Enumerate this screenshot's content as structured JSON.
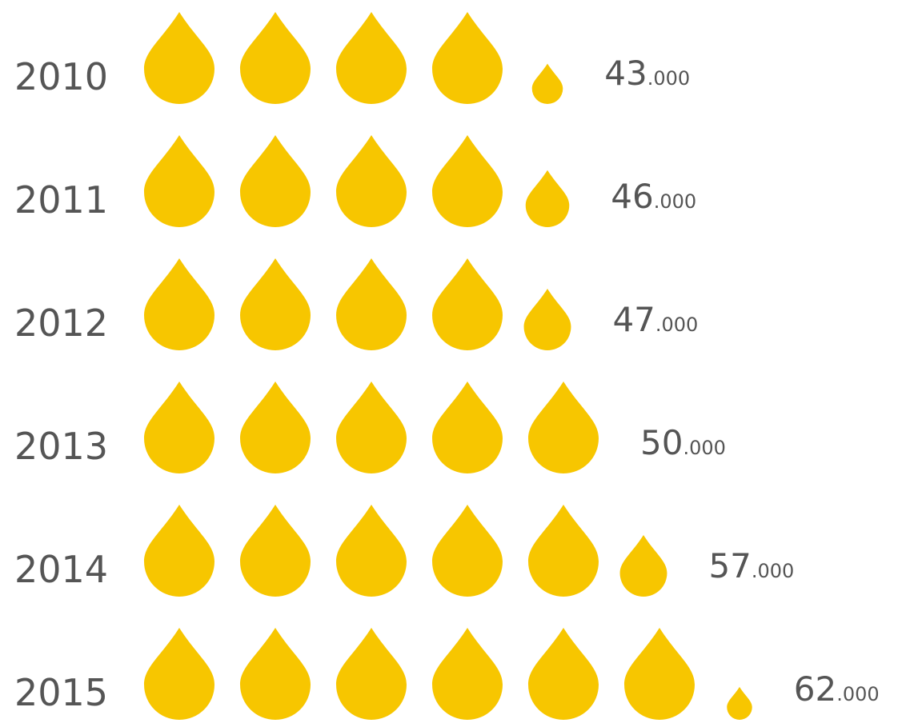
{
  "chart_data": {
    "type": "pictogram",
    "categories": [
      "2010",
      "2011",
      "2012",
      "2013",
      "2014",
      "2015"
    ],
    "values": [
      43000,
      46000,
      47000,
      50000,
      57000,
      62000
    ],
    "value_labels": [
      "43.000",
      "46.000",
      "47.000",
      "50.000",
      "57.000",
      "62.000"
    ],
    "unit": 10000,
    "color": "#f7c600"
  }
}
